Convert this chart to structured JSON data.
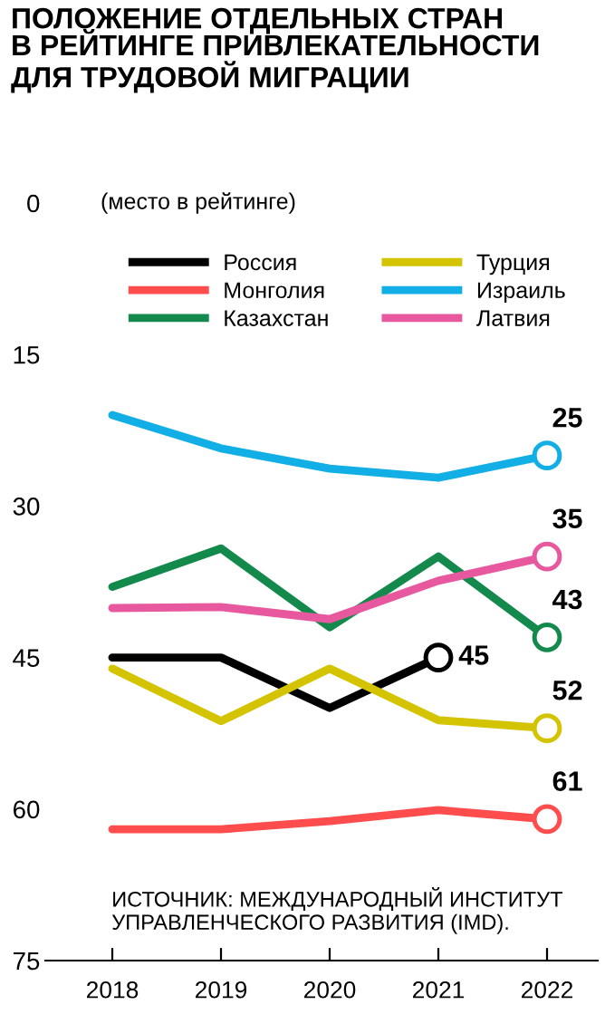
{
  "chart_data": {
    "type": "line",
    "title": "ПОЛОЖЕНИЕ ОТДЕЛЬНЫХ СТРАН\nВ РЕЙТИНГЕ ПРИВЛЕКАТЕЛЬНОСТИ\nДЛЯ ТРУДОВОЙ МИГРАЦИИ",
    "ylabel": "(место в рейтинге)",
    "categories": [
      "2018",
      "2019",
      "2020",
      "2021",
      "2022"
    ],
    "series": [
      {
        "name": "Россия",
        "color": "#000000",
        "values": [
          45,
          45,
          50,
          45,
          null
        ],
        "value_labels": [
          null,
          null,
          null,
          "45",
          null
        ]
      },
      {
        "name": "Монголия",
        "color": "#ff4d4d",
        "values": [
          62,
          62,
          61.2,
          60.1,
          61
        ],
        "value_labels": [
          null,
          null,
          null,
          null,
          "61"
        ]
      },
      {
        "name": "Казахстан",
        "color": "#138a4c",
        "values": [
          38,
          34.2,
          42,
          35,
          43
        ],
        "value_labels": [
          null,
          null,
          null,
          null,
          "43"
        ]
      },
      {
        "name": "Турция",
        "color": "#d4c400",
        "values": [
          46.1,
          51.3,
          46.1,
          51.2,
          52
        ],
        "value_labels": [
          null,
          null,
          null,
          null,
          "52"
        ]
      },
      {
        "name": "Израиль",
        "color": "#12aee6",
        "values": [
          21,
          24.3,
          26.3,
          27.2,
          25
        ],
        "value_labels": [
          null,
          null,
          null,
          null,
          "25"
        ]
      },
      {
        "name": "Латвия",
        "color": "#e8589e",
        "values": [
          40.1,
          40,
          41.2,
          37.4,
          35
        ],
        "value_labels": [
          null,
          null,
          null,
          null,
          "35"
        ]
      }
    ],
    "ylim": [
      75,
      0
    ],
    "yticks": [
      0,
      15,
      30,
      45,
      60,
      75
    ],
    "legend": "top",
    "grid": false,
    "line_style": "solid",
    "annotations": [
      "ИСТОЧНИК: МЕЖДУНАРОДНЫЙ ИНСТИТУТ\nУПРАВЛЕНЧЕСКОГО РАЗВИТИЯ (IMD)."
    ]
  }
}
